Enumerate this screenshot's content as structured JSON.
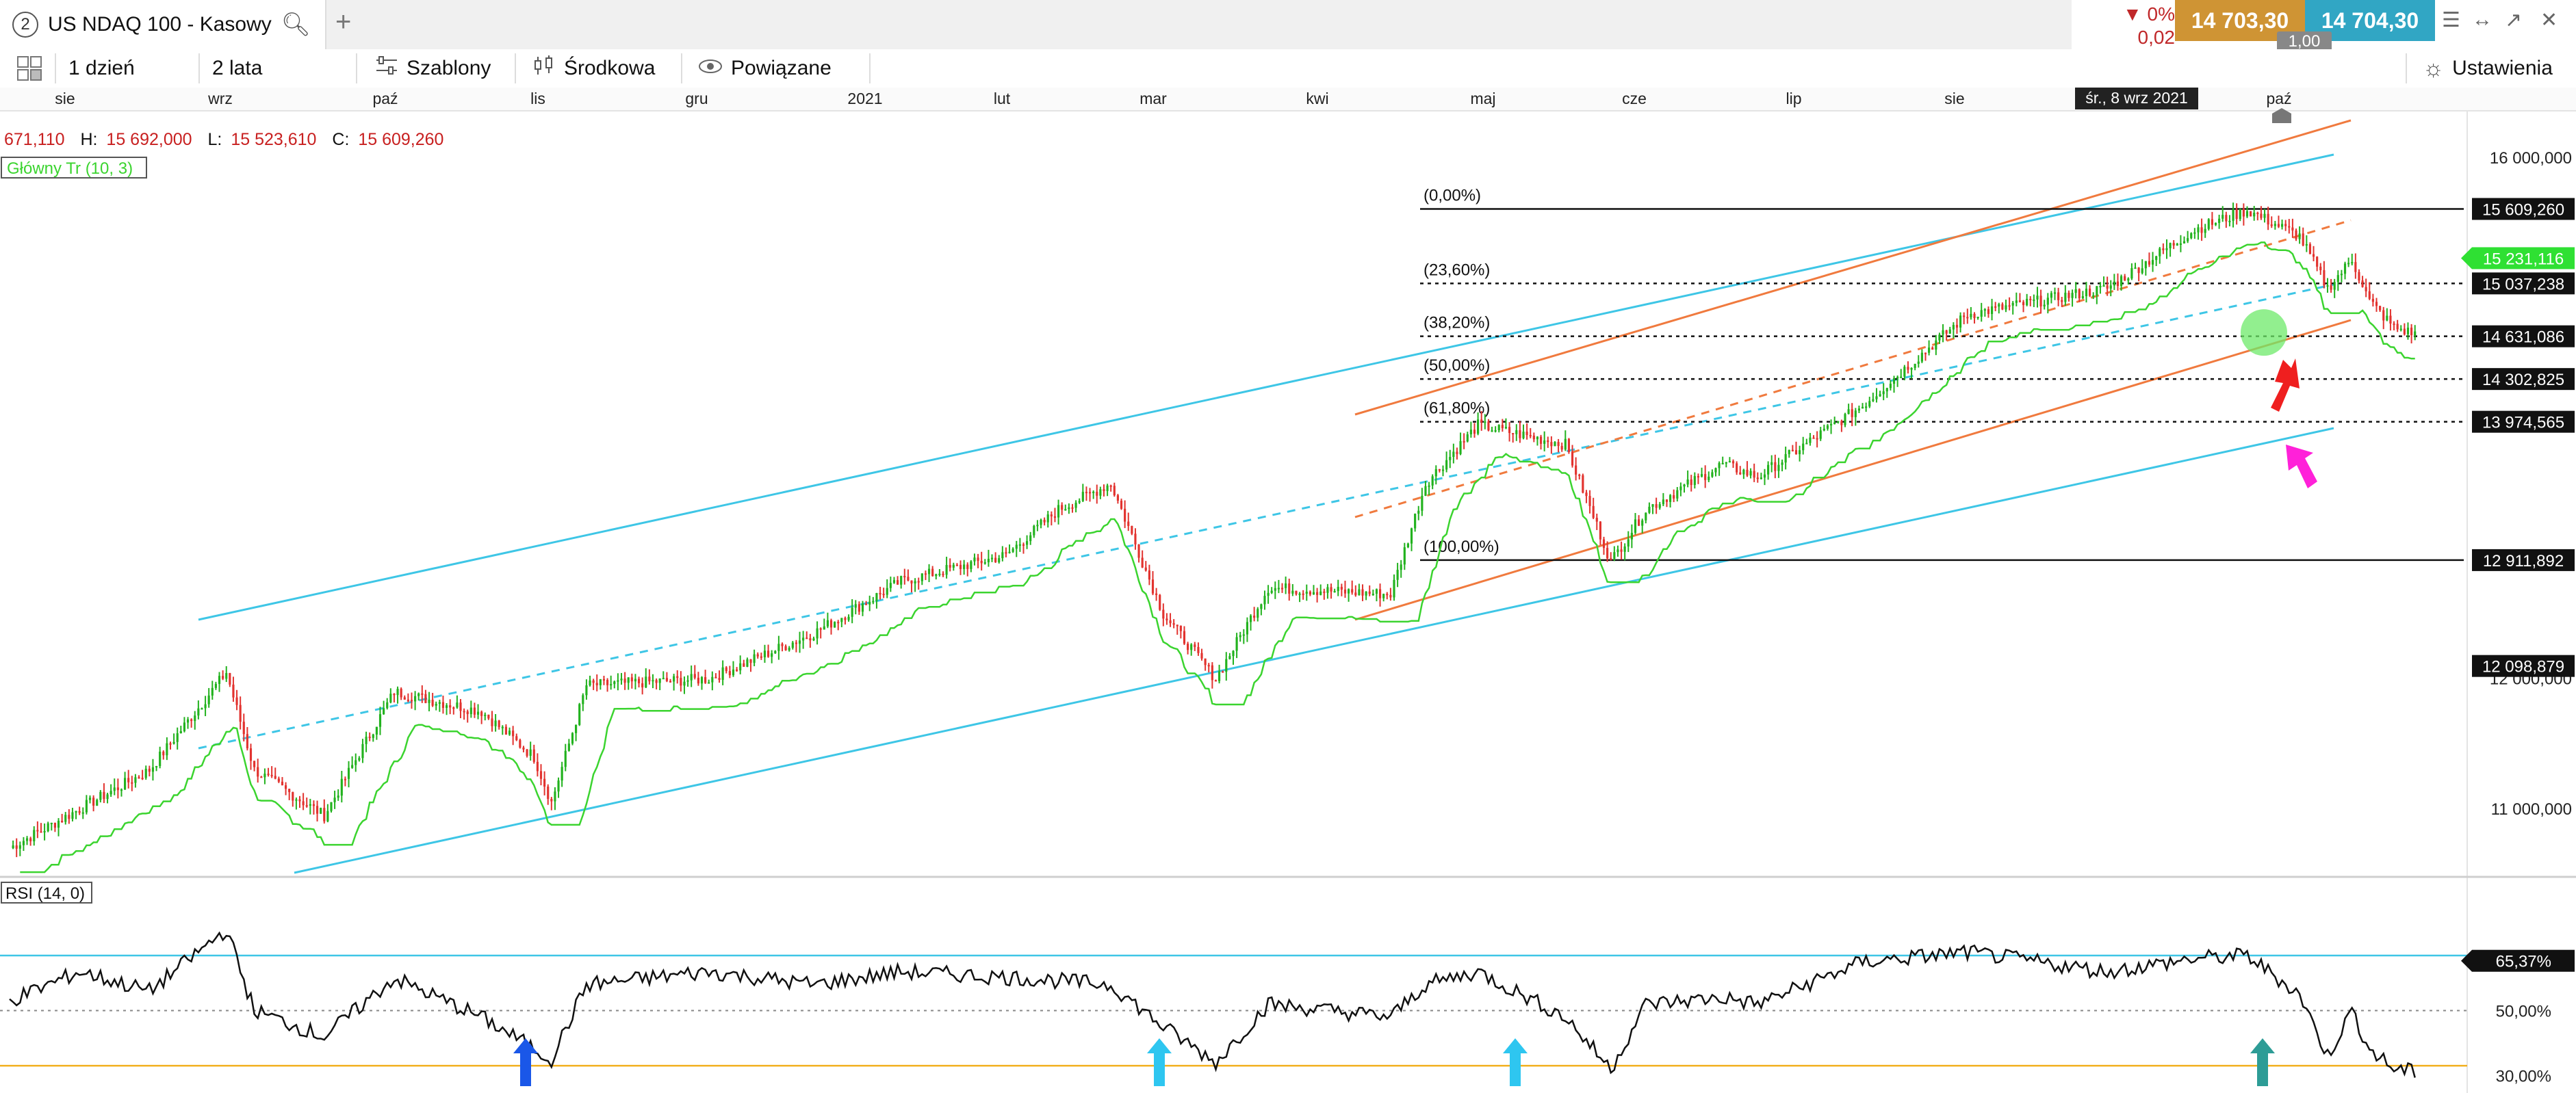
{
  "tab": {
    "number": "2",
    "title": "US NDAQ 100 - Kasowy"
  },
  "quote": {
    "change_pct": "0%",
    "change_abs": "0,02",
    "bid": "14 703,30",
    "ask": "14 704,30",
    "spread": "1,00"
  },
  "toolbar": {
    "interval": "1 dzień",
    "range": "2 lata",
    "templates": "Szablony",
    "indicator": "Środkowa",
    "related": "Powiązane",
    "settings": "Ustawienia"
  },
  "ohlc": {
    "o": "671,110",
    "h_label": "H:",
    "h": "15 692,000",
    "l_label": "L:",
    "l": "15 523,610",
    "c_label": "C:",
    "c": "15 609,260"
  },
  "indicator_labels": {
    "main": "Główny Tr (10, 3)",
    "rsi": "RSI (14, 0)"
  },
  "crosshair_date": "śr., 8 wrz 2021",
  "colors": {
    "up": "#22b21e",
    "down": "#e2332f",
    "channel_blue": "#3ec6e6",
    "channel_orange": "#f07a3e",
    "trend_green": "#3bd42f",
    "trend_red": "#e0464a",
    "rsi_line": "#111111",
    "rsi_upper": "#3ec6e6",
    "rsi_lower": "#f2b01e"
  },
  "chart_data": [
    {
      "type": "candlestick",
      "x_tick_labels": [
        "sie",
        "wrz",
        "paź",
        "lis",
        "gru",
        "2021",
        "lut",
        "mar",
        "kwi",
        "maj",
        "cze",
        "lip",
        "sie",
        "paź"
      ],
      "y_tick_labels": [
        "16 000,000",
        "12 000,000",
        "11 000,000"
      ],
      "ylim": [
        10500000,
        16300000
      ],
      "price_tags": [
        "15 609,260",
        "15 231,116",
        "15 037,238",
        "14 631,086",
        "14 302,825",
        "13 974,565",
        "12 911,892",
        "12 098,879"
      ],
      "fibonacci": {
        "levels": [
          {
            "label": "(0,00%)",
            "value": 15609260
          },
          {
            "label": "(23,60%)",
            "value": 15037238
          },
          {
            "label": "(38,20%)",
            "value": 14631086
          },
          {
            "label": "(50,00%)",
            "value": 14302825
          },
          {
            "label": "(61,80%)",
            "value": 13974565
          },
          {
            "label": "(100,00%)",
            "value": 12911892
          }
        ]
      },
      "close_anchors": [
        {
          "t": 0,
          "v": 10700000
        },
        {
          "t": 40,
          "v": 11300000
        },
        {
          "t": 62,
          "v": 12050000
        },
        {
          "t": 70,
          "v": 11300000
        },
        {
          "t": 90,
          "v": 10950000
        },
        {
          "t": 110,
          "v": 11900000
        },
        {
          "t": 135,
          "v": 11750000
        },
        {
          "t": 150,
          "v": 11400000
        },
        {
          "t": 155,
          "v": 11050000
        },
        {
          "t": 165,
          "v": 11950000
        },
        {
          "t": 200,
          "v": 12000000
        },
        {
          "t": 230,
          "v": 12350000
        },
        {
          "t": 255,
          "v": 12750000
        },
        {
          "t": 285,
          "v": 12950000
        },
        {
          "t": 300,
          "v": 13300000
        },
        {
          "t": 315,
          "v": 13500000
        },
        {
          "t": 330,
          "v": 12500000
        },
        {
          "t": 345,
          "v": 12000000
        },
        {
          "t": 360,
          "v": 12700000
        },
        {
          "t": 395,
          "v": 12650000
        },
        {
          "t": 405,
          "v": 13500000
        },
        {
          "t": 420,
          "v": 13950000
        },
        {
          "t": 445,
          "v": 13800000
        },
        {
          "t": 458,
          "v": 12900000
        },
        {
          "t": 468,
          "v": 13300000
        },
        {
          "t": 490,
          "v": 13650000
        },
        {
          "t": 500,
          "v": 13550000
        },
        {
          "t": 530,
          "v": 14100000
        },
        {
          "t": 560,
          "v": 14800000
        },
        {
          "t": 600,
          "v": 15000000
        },
        {
          "t": 625,
          "v": 15450000
        },
        {
          "t": 640,
          "v": 15600000
        },
        {
          "t": 655,
          "v": 15400000
        },
        {
          "t": 663,
          "v": 15000000
        },
        {
          "t": 670,
          "v": 15220000
        },
        {
          "t": 675,
          "v": 14900000
        },
        {
          "t": 682,
          "v": 14700000
        },
        {
          "t": 688,
          "v": 14650000
        }
      ],
      "rsi": {
        "ylim": [
          25,
          90
        ],
        "tick_labels": [
          "65,37%",
          "50,00%",
          "30,00%"
        ],
        "upper_level": 67,
        "mid_level": 50,
        "lower_level": 33,
        "anchors": [
          {
            "t": 0,
            "v": 53
          },
          {
            "t": 20,
            "v": 62
          },
          {
            "t": 40,
            "v": 56
          },
          {
            "t": 62,
            "v": 75
          },
          {
            "t": 70,
            "v": 50
          },
          {
            "t": 90,
            "v": 42
          },
          {
            "t": 110,
            "v": 60
          },
          {
            "t": 135,
            "v": 48
          },
          {
            "t": 155,
            "v": 35
          },
          {
            "t": 165,
            "v": 58
          },
          {
            "t": 200,
            "v": 62
          },
          {
            "t": 230,
            "v": 58
          },
          {
            "t": 255,
            "v": 62
          },
          {
            "t": 290,
            "v": 60
          },
          {
            "t": 315,
            "v": 58
          },
          {
            "t": 330,
            "v": 45
          },
          {
            "t": 345,
            "v": 34
          },
          {
            "t": 360,
            "v": 52
          },
          {
            "t": 395,
            "v": 48
          },
          {
            "t": 405,
            "v": 58
          },
          {
            "t": 420,
            "v": 62
          },
          {
            "t": 445,
            "v": 48
          },
          {
            "t": 458,
            "v": 32
          },
          {
            "t": 468,
            "v": 52
          },
          {
            "t": 490,
            "v": 54
          },
          {
            "t": 500,
            "v": 52
          },
          {
            "t": 530,
            "v": 65
          },
          {
            "t": 560,
            "v": 68
          },
          {
            "t": 600,
            "v": 62
          },
          {
            "t": 625,
            "v": 66
          },
          {
            "t": 640,
            "v": 67
          },
          {
            "t": 655,
            "v": 55
          },
          {
            "t": 663,
            "v": 36
          },
          {
            "t": 670,
            "v": 50
          },
          {
            "t": 675,
            "v": 38
          },
          {
            "t": 682,
            "v": 32
          },
          {
            "t": 688,
            "v": 31
          }
        ]
      }
    }
  ]
}
